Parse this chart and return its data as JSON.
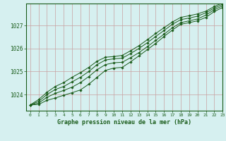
{
  "title": "",
  "xlabel": "Graphe pression niveau de la mer (hPa)",
  "ylabel": "",
  "bg_color": "#d6f0f0",
  "grid_color": "#c8a0a0",
  "line_color": "#1a5c1a",
  "xlim": [
    -0.5,
    23
  ],
  "ylim": [
    1023.3,
    1027.95
  ],
  "yticks": [
    1024,
    1025,
    1026,
    1027
  ],
  "xticks": [
    0,
    1,
    2,
    3,
    4,
    5,
    6,
    7,
    8,
    9,
    10,
    11,
    12,
    13,
    14,
    15,
    16,
    17,
    18,
    19,
    20,
    21,
    22,
    23
  ],
  "series": [
    [
      1023.55,
      1023.57,
      1023.75,
      1023.85,
      1023.97,
      1024.08,
      1024.2,
      1024.45,
      1024.75,
      1025.05,
      1025.15,
      1025.18,
      1025.42,
      1025.68,
      1025.95,
      1026.22,
      1026.52,
      1026.8,
      1027.05,
      1027.12,
      1027.2,
      1027.35,
      1027.6,
      1027.78
    ],
    [
      1023.55,
      1023.63,
      1023.88,
      1024.05,
      1024.18,
      1024.32,
      1024.52,
      1024.78,
      1025.08,
      1025.3,
      1025.38,
      1025.4,
      1025.6,
      1025.82,
      1026.08,
      1026.35,
      1026.62,
      1026.9,
      1027.12,
      1027.2,
      1027.28,
      1027.45,
      1027.68,
      1027.85
    ],
    [
      1023.55,
      1023.7,
      1024.0,
      1024.22,
      1024.35,
      1024.55,
      1024.75,
      1025.0,
      1025.3,
      1025.5,
      1025.55,
      1025.58,
      1025.78,
      1026.0,
      1026.25,
      1026.52,
      1026.78,
      1027.05,
      1027.25,
      1027.32,
      1027.4,
      1027.55,
      1027.75,
      1027.92
    ],
    [
      1023.55,
      1023.78,
      1024.1,
      1024.35,
      1024.52,
      1024.75,
      1024.95,
      1025.18,
      1025.45,
      1025.62,
      1025.65,
      1025.7,
      1025.9,
      1026.12,
      1026.38,
      1026.65,
      1026.9,
      1027.15,
      1027.35,
      1027.42,
      1027.5,
      1027.62,
      1027.82,
      1027.98
    ]
  ]
}
